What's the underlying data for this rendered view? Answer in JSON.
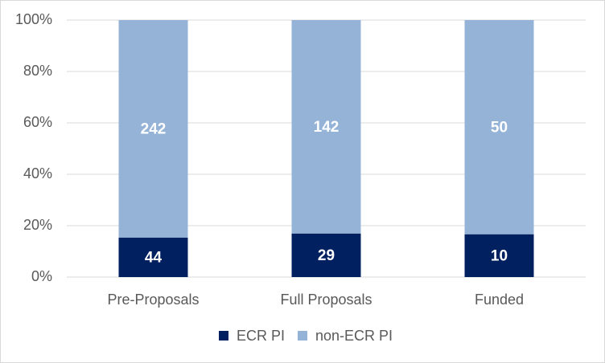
{
  "chart_data": {
    "type": "bar",
    "stacking": "percent",
    "categories": [
      "Pre-Proposals",
      "Full Proposals",
      "Funded"
    ],
    "series": [
      {
        "name": "ECR PI",
        "color": "#002060",
        "values": [
          44,
          29,
          10
        ]
      },
      {
        "name": "non-ECR PI",
        "color": "#95b3d7",
        "values": [
          242,
          142,
          50
        ]
      }
    ],
    "ylim": [
      0,
      100
    ],
    "yticks": [
      {
        "value": 0,
        "label": "0%"
      },
      {
        "value": 20,
        "label": "20%"
      },
      {
        "value": 40,
        "label": "40%"
      },
      {
        "value": 60,
        "label": "60%"
      },
      {
        "value": 80,
        "label": "80%"
      },
      {
        "value": 100,
        "label": "100%"
      }
    ],
    "grid": true,
    "legend": "bottom"
  }
}
